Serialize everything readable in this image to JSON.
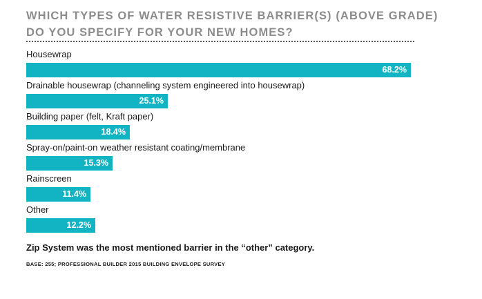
{
  "header": {
    "title_line1": "WHICH TYPES OF WATER RESISTIVE BARRIER(S) (ABOVE GRADE)",
    "title_line2": "DO YOU SPECIFY FOR YOUR NEW HOMES?"
  },
  "chart_data": {
    "type": "bar",
    "orientation": "horizontal",
    "categories": [
      "Housewrap",
      "Drainable housewrap (channeling system engineered into housewrap)",
      "Building paper (felt, Kraft paper)",
      "Spray-on/paint-on weather resistant coating/membrane",
      "Rainscreen",
      "Other"
    ],
    "values": [
      68.2,
      25.1,
      18.4,
      15.3,
      11.4,
      12.2
    ],
    "value_labels": [
      "68.2%",
      "25.1%",
      "18.4%",
      "15.3%",
      "11.4%",
      "12.2%"
    ],
    "bar_color": "#12b4c4",
    "grid": false
  },
  "footer": {
    "note": "Zip System was the most mentioned barrier in the “other” category.",
    "source": "BASE: 255; PROFESSIONAL BUILDER 2015 BUILDING ENVELOPE SURVEY"
  }
}
